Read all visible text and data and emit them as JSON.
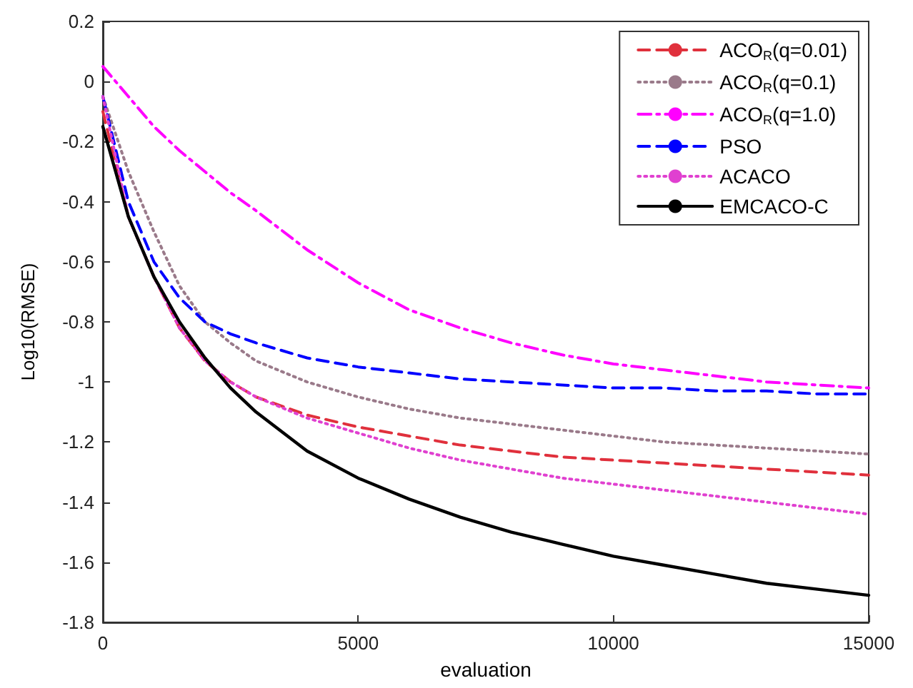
{
  "chart_data": {
    "type": "line",
    "xlabel": "evaluation",
    "ylabel": "Log10(RMSE)",
    "x": [
      0,
      500,
      1000,
      1500,
      2000,
      2500,
      3000,
      4000,
      5000,
      6000,
      7000,
      8000,
      9000,
      10000,
      11000,
      12000,
      13000,
      14000,
      15000
    ],
    "series": [
      {
        "name": "ACO$_{R}$(q=0.01)",
        "color": "#e0303c",
        "line_style": "dashed",
        "values": [
          -0.1,
          -0.45,
          -0.65,
          -0.82,
          -0.93,
          -1.0,
          -1.05,
          -1.11,
          -1.15,
          -1.18,
          -1.21,
          -1.23,
          -1.25,
          -1.26,
          -1.27,
          -1.28,
          -1.29,
          -1.3,
          -1.31
        ]
      },
      {
        "name": "ACO$_{R}$(q=0.1)",
        "color": "#9a7a8a",
        "line_style": "dotted",
        "values": [
          -0.05,
          -0.3,
          -0.5,
          -0.68,
          -0.8,
          -0.87,
          -0.93,
          -1.0,
          -1.05,
          -1.09,
          -1.12,
          -1.14,
          -1.16,
          -1.18,
          -1.2,
          -1.21,
          -1.22,
          -1.23,
          -1.24
        ]
      },
      {
        "name": "ACO$_{R}$(q=1.0)",
        "color": "#ff00ff",
        "line_style": "dashdot",
        "values": [
          0.05,
          -0.05,
          -0.15,
          -0.23,
          -0.3,
          -0.37,
          -0.43,
          -0.56,
          -0.67,
          -0.76,
          -0.82,
          -0.87,
          -0.91,
          -0.94,
          -0.96,
          -0.98,
          -1.0,
          -1.01,
          -1.02
        ]
      },
      {
        "name": "PSO",
        "color": "#0000ff",
        "line_style": "dashed",
        "values": [
          -0.05,
          -0.4,
          -0.6,
          -0.72,
          -0.8,
          -0.84,
          -0.87,
          -0.92,
          -0.95,
          -0.97,
          -0.99,
          -1.0,
          -1.01,
          -1.02,
          -1.02,
          -1.03,
          -1.03,
          -1.04,
          -1.04
        ]
      },
      {
        "name": "ACACO",
        "color": "#e040d0",
        "line_style": "dotted",
        "values": [
          -0.05,
          -0.45,
          -0.65,
          -0.82,
          -0.93,
          -1.0,
          -1.05,
          -1.12,
          -1.17,
          -1.22,
          -1.26,
          -1.29,
          -1.32,
          -1.34,
          -1.36,
          -1.38,
          -1.4,
          -1.42,
          -1.44
        ]
      },
      {
        "name": "EMCACO-C",
        "color": "#000000",
        "line_style": "solid",
        "values": [
          -0.15,
          -0.45,
          -0.65,
          -0.8,
          -0.92,
          -1.02,
          -1.1,
          -1.23,
          -1.32,
          -1.39,
          -1.45,
          -1.5,
          -1.54,
          -1.58,
          -1.61,
          -1.64,
          -1.67,
          -1.69,
          -1.71
        ]
      }
    ],
    "xlim": [
      0,
      15000
    ],
    "xticks": [
      0,
      5000,
      10000,
      15000
    ],
    "ylim": [
      -1.8,
      0.2
    ],
    "yticks": [
      -1.8,
      -1.6,
      -1.4,
      -1.2,
      -1,
      -0.8,
      -0.6,
      -0.4,
      -0.2,
      0,
      0.2
    ],
    "grid": false,
    "legend": "top right",
    "marker": "none"
  }
}
